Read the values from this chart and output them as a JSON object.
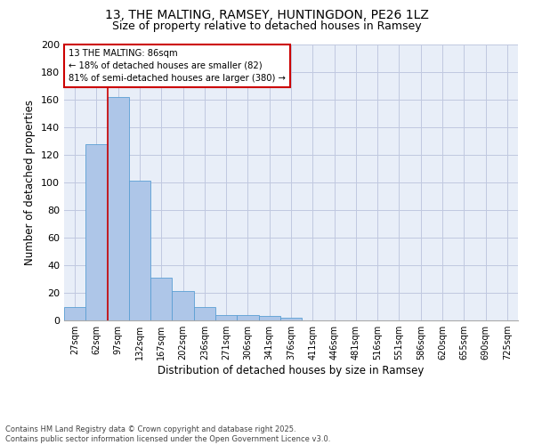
{
  "title_line1": "13, THE MALTING, RAMSEY, HUNTINGDON, PE26 1LZ",
  "title_line2": "Size of property relative to detached houses in Ramsey",
  "xlabel": "Distribution of detached houses by size in Ramsey",
  "ylabel": "Number of detached properties",
  "footer_line1": "Contains HM Land Registry data © Crown copyright and database right 2025.",
  "footer_line2": "Contains public sector information licensed under the Open Government Licence v3.0.",
  "property_size": 86,
  "property_name": "13 THE MALTING",
  "pct_smaller": 18,
  "count_smaller": 82,
  "pct_larger_semi": 81,
  "count_larger_semi": 380,
  "bin_labels": [
    "27sqm",
    "62sqm",
    "97sqm",
    "132sqm",
    "167sqm",
    "202sqm",
    "236sqm",
    "271sqm",
    "306sqm",
    "341sqm",
    "376sqm",
    "411sqm",
    "446sqm",
    "481sqm",
    "516sqm",
    "551sqm",
    "586sqm",
    "620sqm",
    "655sqm",
    "690sqm",
    "725sqm"
  ],
  "bar_values": [
    10,
    128,
    162,
    101,
    31,
    21,
    10,
    4,
    4,
    3,
    2,
    0,
    0,
    0,
    0,
    0,
    0,
    0,
    0,
    0,
    0
  ],
  "bar_color": "#aec6e8",
  "bar_edge_color": "#5a9fd4",
  "ylim": [
    0,
    200
  ],
  "yticks": [
    0,
    20,
    40,
    60,
    80,
    100,
    120,
    140,
    160,
    180,
    200
  ],
  "annotation_box_color": "#cc0000",
  "bg_color": "#e8eef8",
  "grid_color": "#c0c8e0",
  "prop_line_color": "#cc0000"
}
